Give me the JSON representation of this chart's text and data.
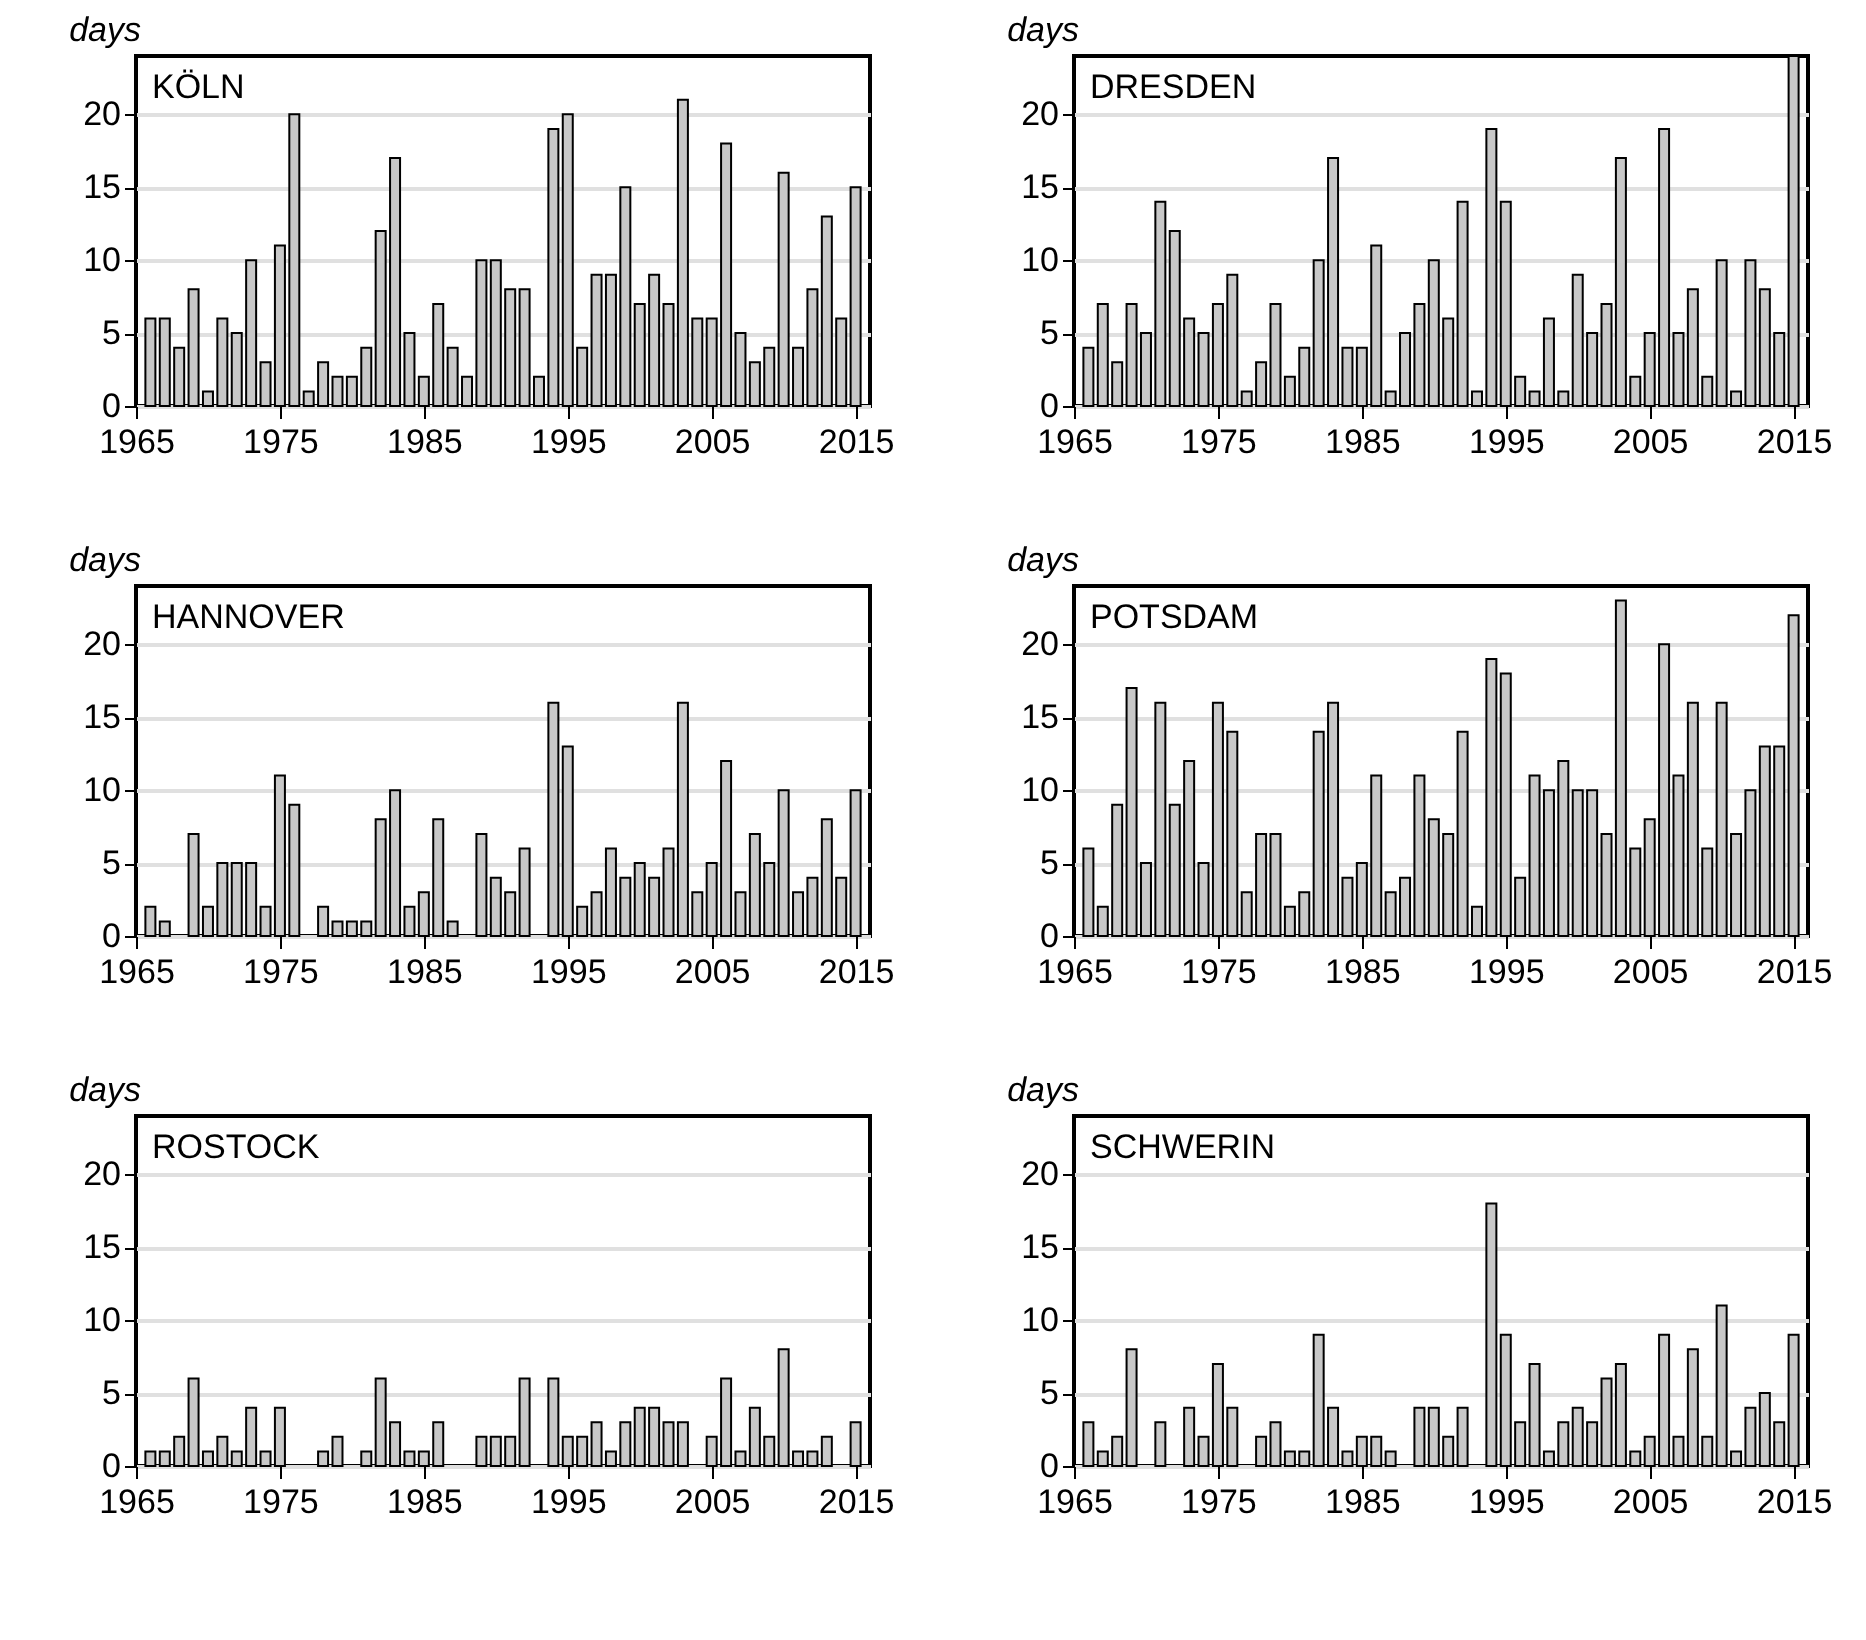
{
  "chart_data": [
    {
      "type": "bar",
      "title": "KÖLN",
      "ylabel": "days",
      "color": "#c8c8c8",
      "grid": "y",
      "xlim": [
        1965,
        2016
      ],
      "xticks": [
        1965,
        1975,
        1985,
        1995,
        2005,
        2015
      ],
      "ylim": [
        0,
        24
      ],
      "yticks": [
        0,
        5,
        10,
        15,
        20
      ],
      "x": [
        1966,
        1967,
        1968,
        1969,
        1970,
        1971,
        1972,
        1973,
        1974,
        1975,
        1976,
        1977,
        1978,
        1979,
        1980,
        1981,
        1982,
        1983,
        1984,
        1985,
        1986,
        1987,
        1988,
        1989,
        1990,
        1991,
        1992,
        1993,
        1994,
        1995,
        1996,
        1997,
        1998,
        1999,
        2000,
        2001,
        2002,
        2003,
        2004,
        2005,
        2006,
        2007,
        2008,
        2009,
        2010,
        2011,
        2012,
        2013,
        2014,
        2015
      ],
      "values": [
        6,
        6,
        4,
        8,
        1,
        6,
        5,
        10,
        3,
        11,
        20,
        1,
        3,
        2,
        2,
        4,
        12,
        17,
        5,
        2,
        7,
        4,
        2,
        10,
        10,
        8,
        8,
        2,
        19,
        20,
        4,
        9,
        9,
        15,
        7,
        9,
        7,
        21,
        6,
        6,
        18,
        5,
        3,
        4,
        16,
        4,
        8,
        13,
        6,
        15
      ]
    },
    {
      "type": "bar",
      "title": "DRESDEN",
      "ylabel": "days",
      "color": "#c8c8c8",
      "grid": "y",
      "xlim": [
        1965,
        2016
      ],
      "xticks": [
        1965,
        1975,
        1985,
        1995,
        2005,
        2015
      ],
      "ylim": [
        0,
        24
      ],
      "yticks": [
        0,
        5,
        10,
        15,
        20
      ],
      "x": [
        1966,
        1967,
        1968,
        1969,
        1970,
        1971,
        1972,
        1973,
        1974,
        1975,
        1976,
        1977,
        1978,
        1979,
        1980,
        1981,
        1982,
        1983,
        1984,
        1985,
        1986,
        1987,
        1988,
        1989,
        1990,
        1991,
        1992,
        1993,
        1994,
        1995,
        1996,
        1997,
        1998,
        1999,
        2000,
        2001,
        2002,
        2003,
        2004,
        2005,
        2006,
        2007,
        2008,
        2009,
        2010,
        2011,
        2012,
        2013,
        2014,
        2015
      ],
      "values": [
        4,
        7,
        3,
        7,
        5,
        14,
        12,
        6,
        5,
        7,
        9,
        1,
        3,
        7,
        2,
        4,
        10,
        17,
        4,
        4,
        11,
        1,
        5,
        7,
        10,
        6,
        14,
        1,
        19,
        14,
        2,
        1,
        6,
        1,
        9,
        5,
        7,
        17,
        2,
        5,
        19,
        5,
        8,
        2,
        10,
        1,
        10,
        8,
        5,
        24
      ]
    },
    {
      "type": "bar",
      "title": "HANNOVER",
      "ylabel": "days",
      "color": "#c8c8c8",
      "grid": "y",
      "xlim": [
        1965,
        2016
      ],
      "xticks": [
        1965,
        1975,
        1985,
        1995,
        2005,
        2015
      ],
      "ylim": [
        0,
        24
      ],
      "yticks": [
        0,
        5,
        10,
        15,
        20
      ],
      "x": [
        1966,
        1967,
        1968,
        1969,
        1970,
        1971,
        1972,
        1973,
        1974,
        1975,
        1976,
        1977,
        1978,
        1979,
        1980,
        1981,
        1982,
        1983,
        1984,
        1985,
        1986,
        1987,
        1988,
        1989,
        1990,
        1991,
        1992,
        1993,
        1994,
        1995,
        1996,
        1997,
        1998,
        1999,
        2000,
        2001,
        2002,
        2003,
        2004,
        2005,
        2006,
        2007,
        2008,
        2009,
        2010,
        2011,
        2012,
        2013,
        2014,
        2015
      ],
      "values": [
        2,
        1,
        0,
        7,
        2,
        5,
        5,
        5,
        2,
        11,
        9,
        0,
        2,
        1,
        1,
        1,
        8,
        10,
        2,
        3,
        8,
        1,
        0,
        7,
        4,
        3,
        6,
        0,
        16,
        13,
        2,
        3,
        6,
        4,
        5,
        4,
        6,
        16,
        3,
        5,
        12,
        3,
        7,
        5,
        10,
        3,
        4,
        8,
        4,
        10
      ]
    },
    {
      "type": "bar",
      "title": "POTSDAM",
      "ylabel": "days",
      "color": "#c8c8c8",
      "grid": "y",
      "xlim": [
        1965,
        2016
      ],
      "xticks": [
        1965,
        1975,
        1985,
        1995,
        2005,
        2015
      ],
      "ylim": [
        0,
        24
      ],
      "yticks": [
        0,
        5,
        10,
        15,
        20
      ],
      "x": [
        1966,
        1967,
        1968,
        1969,
        1970,
        1971,
        1972,
        1973,
        1974,
        1975,
        1976,
        1977,
        1978,
        1979,
        1980,
        1981,
        1982,
        1983,
        1984,
        1985,
        1986,
        1987,
        1988,
        1989,
        1990,
        1991,
        1992,
        1993,
        1994,
        1995,
        1996,
        1997,
        1998,
        1999,
        2000,
        2001,
        2002,
        2003,
        2004,
        2005,
        2006,
        2007,
        2008,
        2009,
        2010,
        2011,
        2012,
        2013,
        2014,
        2015
      ],
      "values": [
        6,
        2,
        9,
        17,
        5,
        16,
        9,
        12,
        5,
        16,
        14,
        3,
        7,
        7,
        2,
        3,
        14,
        16,
        4,
        5,
        11,
        3,
        4,
        11,
        8,
        7,
        14,
        2,
        19,
        18,
        4,
        11,
        10,
        12,
        10,
        10,
        7,
        23,
        6,
        8,
        20,
        11,
        16,
        6,
        16,
        7,
        10,
        13,
        13,
        22
      ]
    },
    {
      "type": "bar",
      "title": "ROSTOCK",
      "ylabel": "days",
      "color": "#c8c8c8",
      "grid": "y",
      "xlim": [
        1965,
        2016
      ],
      "xticks": [
        1965,
        1975,
        1985,
        1995,
        2005,
        2015
      ],
      "ylim": [
        0,
        24
      ],
      "yticks": [
        0,
        5,
        10,
        15,
        20
      ],
      "x": [
        1966,
        1967,
        1968,
        1969,
        1970,
        1971,
        1972,
        1973,
        1974,
        1975,
        1976,
        1977,
        1978,
        1979,
        1980,
        1981,
        1982,
        1983,
        1984,
        1985,
        1986,
        1987,
        1988,
        1989,
        1990,
        1991,
        1992,
        1993,
        1994,
        1995,
        1996,
        1997,
        1998,
        1999,
        2000,
        2001,
        2002,
        2003,
        2004,
        2005,
        2006,
        2007,
        2008,
        2009,
        2010,
        2011,
        2012,
        2013,
        2014,
        2015
      ],
      "values": [
        1,
        1,
        2,
        6,
        1,
        2,
        1,
        4,
        1,
        4,
        0,
        0,
        1,
        2,
        0,
        1,
        6,
        3,
        1,
        1,
        3,
        0,
        0,
        2,
        2,
        2,
        6,
        0,
        6,
        2,
        2,
        3,
        1,
        3,
        4,
        4,
        3,
        3,
        0,
        2,
        6,
        1,
        4,
        2,
        8,
        1,
        1,
        2,
        0,
        3
      ]
    },
    {
      "type": "bar",
      "title": "SCHWERIN",
      "ylabel": "days",
      "color": "#c8c8c8",
      "grid": "y",
      "xlim": [
        1965,
        2016
      ],
      "xticks": [
        1965,
        1975,
        1985,
        1995,
        2005,
        2015
      ],
      "ylim": [
        0,
        24
      ],
      "yticks": [
        0,
        5,
        10,
        15,
        20
      ],
      "x": [
        1966,
        1967,
        1968,
        1969,
        1970,
        1971,
        1972,
        1973,
        1974,
        1975,
        1976,
        1977,
        1978,
        1979,
        1980,
        1981,
        1982,
        1983,
        1984,
        1985,
        1986,
        1987,
        1988,
        1989,
        1990,
        1991,
        1992,
        1993,
        1994,
        1995,
        1996,
        1997,
        1998,
        1999,
        2000,
        2001,
        2002,
        2003,
        2004,
        2005,
        2006,
        2007,
        2008,
        2009,
        2010,
        2011,
        2012,
        2013,
        2014,
        2015
      ],
      "values": [
        3,
        1,
        2,
        8,
        0,
        3,
        0,
        4,
        2,
        7,
        4,
        0,
        2,
        3,
        1,
        1,
        9,
        4,
        1,
        2,
        2,
        1,
        0,
        4,
        4,
        2,
        4,
        0,
        18,
        9,
        3,
        7,
        1,
        3,
        4,
        3,
        6,
        7,
        1,
        2,
        9,
        2,
        8,
        2,
        11,
        1,
        4,
        5,
        3,
        9
      ]
    }
  ]
}
